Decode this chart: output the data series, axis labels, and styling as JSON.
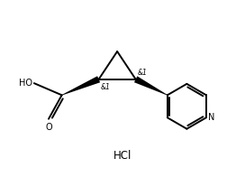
{
  "background_color": "#ffffff",
  "line_color": "#000000",
  "line_width": 1.4,
  "HCl_label": "HCl",
  "stereo1_label": "&1",
  "stereo2_label": "&1",
  "HO_label": "HO",
  "O_label": "O",
  "N_label": "N",
  "fig_width": 2.72,
  "fig_height": 1.96,
  "dpi": 100,
  "xlim": [
    0,
    9
  ],
  "ylim": [
    0,
    6.5
  ]
}
